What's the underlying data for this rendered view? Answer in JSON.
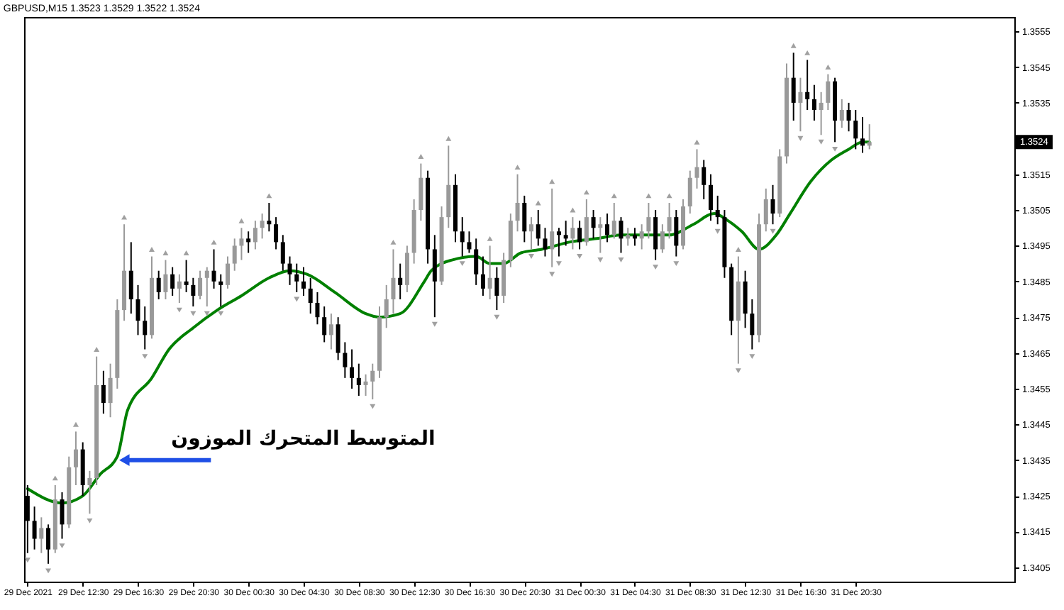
{
  "chart_data": {
    "type": "candlestick",
    "title": "GBPUSD,M15 1.3523 1.3529 1.3522 1.3524",
    "x": [
      "2021-12-29T08:30",
      "2021-12-29T09:00",
      "2021-12-29T09:30",
      "2021-12-29T10:00",
      "2021-12-29T10:30",
      "2021-12-29T11:00",
      "2021-12-29T11:30",
      "2021-12-29T12:00",
      "2021-12-29T12:30",
      "2021-12-29T13:00",
      "2021-12-29T13:30",
      "2021-12-29T14:00",
      "2021-12-29T14:30",
      "2021-12-29T15:00",
      "2021-12-29T15:30",
      "2021-12-29T16:00",
      "2021-12-29T16:30",
      "2021-12-29T17:00",
      "2021-12-29T17:30",
      "2021-12-29T18:00",
      "2021-12-29T18:30",
      "2021-12-29T19:00",
      "2021-12-29T19:30",
      "2021-12-29T20:00",
      "2021-12-29T20:30",
      "2021-12-29T21:00",
      "2021-12-29T21:30",
      "2021-12-29T22:00",
      "2021-12-29T22:30",
      "2021-12-29T23:00",
      "2021-12-29T23:30",
      "2021-12-30T00:00",
      "2021-12-30T00:30",
      "2021-12-30T01:00",
      "2021-12-30T01:30",
      "2021-12-30T02:00",
      "2021-12-30T02:30",
      "2021-12-30T03:00",
      "2021-12-30T03:30",
      "2021-12-30T04:00",
      "2021-12-30T04:30",
      "2021-12-30T05:00",
      "2021-12-30T05:30",
      "2021-12-30T06:00",
      "2021-12-30T06:30",
      "2021-12-30T07:00",
      "2021-12-30T07:30",
      "2021-12-30T08:00",
      "2021-12-30T08:30",
      "2021-12-30T09:00",
      "2021-12-30T09:30",
      "2021-12-30T10:00",
      "2021-12-30T10:30",
      "2021-12-30T11:00",
      "2021-12-30T11:30",
      "2021-12-30T12:00",
      "2021-12-30T12:30",
      "2021-12-30T13:00",
      "2021-12-30T13:30",
      "2021-12-30T14:00",
      "2021-12-30T14:30",
      "2021-12-30T15:00",
      "2021-12-30T15:30",
      "2021-12-30T16:00",
      "2021-12-30T16:30",
      "2021-12-30T17:00",
      "2021-12-30T17:30",
      "2021-12-30T18:00",
      "2021-12-30T18:30",
      "2021-12-30T19:00",
      "2021-12-30T19:30",
      "2021-12-30T20:00",
      "2021-12-30T20:30",
      "2021-12-30T21:00",
      "2021-12-30T21:30",
      "2021-12-30T22:00",
      "2021-12-30T22:30",
      "2021-12-30T23:00",
      "2021-12-30T23:30",
      "2021-12-31T00:00",
      "2021-12-31T00:30",
      "2021-12-31T01:00",
      "2021-12-31T01:30",
      "2021-12-31T02:00",
      "2021-12-31T02:30",
      "2021-12-31T03:00",
      "2021-12-31T03:30",
      "2021-12-31T04:00",
      "2021-12-31T04:30",
      "2021-12-31T05:00",
      "2021-12-31T05:30",
      "2021-12-31T06:00",
      "2021-12-31T06:30",
      "2021-12-31T07:00",
      "2021-12-31T07:30",
      "2021-12-31T08:00",
      "2021-12-31T08:30",
      "2021-12-31T09:00",
      "2021-12-31T09:30",
      "2021-12-31T10:00",
      "2021-12-31T10:30",
      "2021-12-31T11:00",
      "2021-12-31T11:30",
      "2021-12-31T12:00",
      "2021-12-31T12:30",
      "2021-12-31T13:00",
      "2021-12-31T13:30",
      "2021-12-31T14:00",
      "2021-12-31T14:30",
      "2021-12-31T15:00",
      "2021-12-31T15:30",
      "2021-12-31T16:00",
      "2021-12-31T16:30",
      "2021-12-31T17:00",
      "2021-12-31T17:30",
      "2021-12-31T18:00",
      "2021-12-31T18:30",
      "2021-12-31T19:00",
      "2021-12-31T19:30",
      "2021-12-31T20:00",
      "2021-12-31T20:30",
      "2021-12-31T21:00",
      "2021-12-31T21:30"
    ],
    "ohlc": [
      [
        1.3425,
        1.3428,
        1.3409,
        1.3418
      ],
      [
        1.3418,
        1.3422,
        1.341,
        1.3413
      ],
      [
        1.3413,
        1.3419,
        1.3409,
        1.3416
      ],
      [
        1.3416,
        1.3417,
        1.3406,
        1.341
      ],
      [
        1.341,
        1.3428,
        1.3409,
        1.3424
      ],
      [
        1.3424,
        1.3426,
        1.3413,
        1.3417
      ],
      [
        1.3417,
        1.3436,
        1.3416,
        1.3433
      ],
      [
        1.3433,
        1.3443,
        1.3428,
        1.3438
      ],
      [
        1.3438,
        1.344,
        1.3425,
        1.3428
      ],
      [
        1.3428,
        1.3432,
        1.342,
        1.343
      ],
      [
        1.343,
        1.3464,
        1.3428,
        1.3456
      ],
      [
        1.3456,
        1.346,
        1.3448,
        1.3451
      ],
      [
        1.3451,
        1.3462,
        1.3447,
        1.3458
      ],
      [
        1.3458,
        1.348,
        1.3455,
        1.3477
      ],
      [
        1.3477,
        1.3501,
        1.3474,
        1.3488
      ],
      [
        1.3488,
        1.3496,
        1.3476,
        1.348
      ],
      [
        1.348,
        1.3484,
        1.347,
        1.3474
      ],
      [
        1.3474,
        1.3478,
        1.3466,
        1.347
      ],
      [
        1.347,
        1.3492,
        1.3469,
        1.3486
      ],
      [
        1.3486,
        1.3488,
        1.348,
        1.3482
      ],
      [
        1.3482,
        1.3491,
        1.348,
        1.3487
      ],
      [
        1.3487,
        1.3489,
        1.3481,
        1.3483
      ],
      [
        1.3483,
        1.3487,
        1.3479,
        1.3485
      ],
      [
        1.3485,
        1.3491,
        1.3482,
        1.3484
      ],
      [
        1.3484,
        1.3486,
        1.3478,
        1.3481
      ],
      [
        1.3481,
        1.3488,
        1.348,
        1.3486
      ],
      [
        1.3486,
        1.3489,
        1.3478,
        1.3488
      ],
      [
        1.3488,
        1.3494,
        1.3483,
        1.3485
      ],
      [
        1.3485,
        1.3487,
        1.3478,
        1.3484
      ],
      [
        1.3484,
        1.3492,
        1.3483,
        1.349
      ],
      [
        1.349,
        1.3497,
        1.3488,
        1.3495
      ],
      [
        1.3495,
        1.35,
        1.3491,
        1.3497
      ],
      [
        1.3497,
        1.3499,
        1.3493,
        1.3496
      ],
      [
        1.3496,
        1.3502,
        1.3494,
        1.35
      ],
      [
        1.35,
        1.3504,
        1.3497,
        1.3502
      ],
      [
        1.3502,
        1.3507,
        1.3499,
        1.3501
      ],
      [
        1.3501,
        1.3503,
        1.3494,
        1.3496
      ],
      [
        1.3496,
        1.3498,
        1.3488,
        1.349
      ],
      [
        1.349,
        1.3492,
        1.3484,
        1.3487
      ],
      [
        1.3487,
        1.349,
        1.3482,
        1.3485
      ],
      [
        1.3485,
        1.3489,
        1.3481,
        1.3483
      ],
      [
        1.3483,
        1.3486,
        1.3476,
        1.3479
      ],
      [
        1.3479,
        1.3482,
        1.3473,
        1.3475
      ],
      [
        1.3475,
        1.3478,
        1.3468,
        1.347
      ],
      [
        1.347,
        1.3476,
        1.3466,
        1.3473
      ],
      [
        1.3473,
        1.3475,
        1.3463,
        1.3465
      ],
      [
        1.3465,
        1.3468,
        1.3458,
        1.3461
      ],
      [
        1.3461,
        1.3466,
        1.3455,
        1.3458
      ],
      [
        1.3458,
        1.3462,
        1.3453,
        1.3456
      ],
      [
        1.3456,
        1.3459,
        1.3453,
        1.3457
      ],
      [
        1.3457,
        1.3462,
        1.3452,
        1.346
      ],
      [
        1.346,
        1.3478,
        1.3458,
        1.3475
      ],
      [
        1.3475,
        1.3484,
        1.3472,
        1.348
      ],
      [
        1.348,
        1.3494,
        1.3476,
        1.3486
      ],
      [
        1.3486,
        1.349,
        1.348,
        1.3484
      ],
      [
        1.3484,
        1.3495,
        1.3482,
        1.3493
      ],
      [
        1.3493,
        1.3508,
        1.349,
        1.3505
      ],
      [
        1.3505,
        1.3518,
        1.3502,
        1.3514
      ],
      [
        1.3514,
        1.3516,
        1.349,
        1.3494
      ],
      [
        1.3494,
        1.3498,
        1.3475,
        1.3485
      ],
      [
        1.3485,
        1.3506,
        1.3484,
        1.3503
      ],
      [
        1.3503,
        1.3523,
        1.35,
        1.3512
      ],
      [
        1.3512,
        1.3515,
        1.3496,
        1.3499
      ],
      [
        1.3499,
        1.3503,
        1.3492,
        1.3496
      ],
      [
        1.3496,
        1.3499,
        1.3493,
        1.3494
      ],
      [
        1.3494,
        1.3497,
        1.3484,
        1.3487
      ],
      [
        1.3487,
        1.3492,
        1.3481,
        1.3483
      ],
      [
        1.3483,
        1.3495,
        1.348,
        1.3486
      ],
      [
        1.3486,
        1.3489,
        1.3477,
        1.3481
      ],
      [
        1.3481,
        1.3493,
        1.3479,
        1.3491
      ],
      [
        1.3491,
        1.3504,
        1.3489,
        1.3502
      ],
      [
        1.3502,
        1.3515,
        1.3499,
        1.3507
      ],
      [
        1.3507,
        1.3509,
        1.3496,
        1.3499
      ],
      [
        1.3499,
        1.3503,
        1.3494,
        1.3501
      ],
      [
        1.3501,
        1.3505,
        1.3495,
        1.3497
      ],
      [
        1.3497,
        1.35,
        1.3492,
        1.3494
      ],
      [
        1.3494,
        1.3511,
        1.3489,
        1.3499
      ],
      [
        1.3499,
        1.35,
        1.3492,
        1.3498
      ],
      [
        1.3498,
        1.3502,
        1.3495,
        1.3497
      ],
      [
        1.3497,
        1.3503,
        1.3494,
        1.35
      ],
      [
        1.35,
        1.3502,
        1.3494,
        1.3496
      ],
      [
        1.3496,
        1.3508,
        1.3495,
        1.3503
      ],
      [
        1.3503,
        1.3505,
        1.3497,
        1.35
      ],
      [
        1.35,
        1.3503,
        1.3493,
        1.3501
      ],
      [
        1.3501,
        1.3504,
        1.3496,
        1.3498
      ],
      [
        1.3498,
        1.3507,
        1.3497,
        1.3502
      ],
      [
        1.3502,
        1.3503,
        1.3493,
        1.3497
      ],
      [
        1.3497,
        1.35,
        1.3495,
        1.3498
      ],
      [
        1.3498,
        1.35,
        1.3495,
        1.3497
      ],
      [
        1.3497,
        1.3501,
        1.3494,
        1.3499
      ],
      [
        1.3499,
        1.3507,
        1.3497,
        1.3503
      ],
      [
        1.3503,
        1.3505,
        1.3491,
        1.3494
      ],
      [
        1.3494,
        1.3501,
        1.3493,
        1.3499
      ],
      [
        1.3499,
        1.3507,
        1.3497,
        1.3503
      ],
      [
        1.3503,
        1.3505,
        1.3492,
        1.3495
      ],
      [
        1.3495,
        1.3508,
        1.3494,
        1.3506
      ],
      [
        1.3506,
        1.3516,
        1.3504,
        1.3514
      ],
      [
        1.3514,
        1.3522,
        1.3511,
        1.3517
      ],
      [
        1.3517,
        1.3519,
        1.3508,
        1.3512
      ],
      [
        1.3512,
        1.3515,
        1.3502,
        1.3505
      ],
      [
        1.3505,
        1.3509,
        1.3501,
        1.3503
      ],
      [
        1.3503,
        1.3505,
        1.3486,
        1.3489
      ],
      [
        1.3489,
        1.349,
        1.347,
        1.3474
      ],
      [
        1.3474,
        1.3492,
        1.3462,
        1.3485
      ],
      [
        1.3485,
        1.3488,
        1.3472,
        1.3476
      ],
      [
        1.3476,
        1.348,
        1.3466,
        1.347
      ],
      [
        1.347,
        1.3504,
        1.3468,
        1.3501
      ],
      [
        1.3501,
        1.3511,
        1.3499,
        1.3508
      ],
      [
        1.3508,
        1.3512,
        1.3501,
        1.3504
      ],
      [
        1.3504,
        1.3522,
        1.3503,
        1.352
      ],
      [
        1.352,
        1.3546,
        1.3518,
        1.3542
      ],
      [
        1.3542,
        1.3549,
        1.353,
        1.3535
      ],
      [
        1.3535,
        1.3542,
        1.3527,
        1.3538
      ],
      [
        1.3538,
        1.3547,
        1.3533,
        1.3536
      ],
      [
        1.3536,
        1.354,
        1.353,
        1.3533
      ],
      [
        1.3533,
        1.3538,
        1.3526,
        1.3535
      ],
      [
        1.3535,
        1.3543,
        1.3533,
        1.3541
      ],
      [
        1.3541,
        1.3542,
        1.3524,
        1.353
      ],
      [
        1.353,
        1.3536,
        1.3528,
        1.3533
      ],
      [
        1.3533,
        1.3535,
        1.3527,
        1.353
      ],
      [
        1.353,
        1.3533,
        1.3522,
        1.3525
      ],
      [
        1.3525,
        1.3531,
        1.3521,
        1.3523
      ],
      [
        1.3523,
        1.3529,
        1.3522,
        1.3524
      ]
    ],
    "colors": [
      "#000000",
      "#000000",
      "#999999",
      "#000000",
      "#999999",
      "#000000",
      "#999999",
      "#999999",
      "#000000",
      "#999999",
      "#999999",
      "#000000",
      "#999999",
      "#999999",
      "#999999",
      "#000000",
      "#000000",
      "#000000",
      "#999999",
      "#000000",
      "#999999",
      "#000000",
      "#999999",
      "#000000",
      "#000000",
      "#999999",
      "#999999",
      "#000000",
      "#000000",
      "#999999",
      "#999999",
      "#999999",
      "#000000",
      "#999999",
      "#999999",
      "#000000",
      "#000000",
      "#000000",
      "#000000",
      "#000000",
      "#000000",
      "#000000",
      "#000000",
      "#000000",
      "#999999",
      "#000000",
      "#000000",
      "#000000",
      "#000000",
      "#999999",
      "#999999",
      "#999999",
      "#999999",
      "#999999",
      "#000000",
      "#999999",
      "#999999",
      "#999999",
      "#000000",
      "#000000",
      "#999999",
      "#999999",
      "#000000",
      "#000000",
      "#000000",
      "#000000",
      "#000000",
      "#999999",
      "#000000",
      "#999999",
      "#999999",
      "#999999",
      "#000000",
      "#999999",
      "#000000",
      "#000000",
      "#999999",
      "#000000",
      "#000000",
      "#999999",
      "#000000",
      "#999999",
      "#000000",
      "#999999",
      "#000000",
      "#999999",
      "#000000",
      "#999999",
      "#000000",
      "#999999",
      "#999999",
      "#000000",
      "#999999",
      "#999999",
      "#000000",
      "#999999",
      "#999999",
      "#999999",
      "#000000",
      "#000000",
      "#000000",
      "#000000",
      "#000000",
      "#999999",
      "#000000",
      "#000000",
      "#999999",
      "#999999",
      "#000000",
      "#999999",
      "#999999",
      "#000000",
      "#999999",
      "#000000",
      "#000000",
      "#999999",
      "#999999",
      "#000000",
      "#999999",
      "#000000",
      "#000000",
      "#000000",
      "#999999"
    ],
    "series": [
      {
        "type": "line",
        "color": "#008000",
        "marker": "none",
        "line_style": "solid",
        "x": [
          "2021-12-29T08:30",
          "2021-12-29T11:00",
          "2021-12-29T12:30",
          "2021-12-29T13:45",
          "2021-12-29T15:00",
          "2021-12-29T15:45",
          "2021-12-29T17:30",
          "2021-12-29T18:45",
          "2021-12-29T20:30",
          "2021-12-29T22:15",
          "2021-12-30T00:00",
          "2021-12-30T02:00",
          "2021-12-30T03:30",
          "2021-12-30T04:45",
          "2021-12-30T06:45",
          "2021-12-30T09:00",
          "2021-12-30T10:00",
          "2021-12-30T11:30",
          "2021-12-30T13:15",
          "2021-12-30T13:45",
          "2021-12-30T15:15",
          "2021-12-30T17:00",
          "2021-12-30T18:00",
          "2021-12-30T19:00",
          "2021-12-30T20:15",
          "2021-12-30T21:45",
          "2021-12-30T23:45",
          "2021-12-31T01:45",
          "2021-12-31T03:30",
          "2021-12-31T05:15",
          "2021-12-31T07:00",
          "2021-12-31T08:45",
          "2021-12-31T10:15",
          "2021-12-31T11:15",
          "2021-12-31T12:15",
          "2021-12-31T13:30",
          "2021-12-31T14:45",
          "2021-12-31T15:45",
          "2021-12-31T17:15",
          "2021-12-31T18:45",
          "2021-12-31T20:00",
          "2021-12-31T21:00",
          "2021-12-31T21:30"
        ],
        "values": [
          1.3427,
          1.3423,
          1.3425,
          1.3431,
          1.3436,
          1.3449,
          1.3458,
          1.3466,
          1.3472,
          1.3477,
          1.3481,
          1.3486,
          1.3488,
          1.3487,
          1.3482,
          1.3476,
          1.3475,
          1.3476,
          1.3485,
          1.3488,
          1.3491,
          1.3492,
          1.349,
          1.349,
          1.3493,
          1.3494,
          1.3496,
          1.3497,
          1.3498,
          1.3498,
          1.3498,
          1.3501,
          1.3504,
          1.3502,
          1.3499,
          1.3494,
          1.3498,
          1.3504,
          1.3513,
          1.3519,
          1.3522,
          1.3524,
          1.3524
        ]
      },
      {
        "type": "scatter",
        "color": "#a0a0a0",
        "marker": "triangle",
        "x": [
          "2021-12-29T10:30",
          "2021-12-29T12:00",
          "2021-12-29T13:30",
          "2021-12-29T15:30",
          "2021-12-29T17:30",
          "2021-12-29T18:30",
          "2021-12-29T20:00",
          "2021-12-29T22:00",
          "2021-12-30T00:00",
          "2021-12-30T02:00",
          "2021-12-30T11:00",
          "2021-12-30T13:00",
          "2021-12-30T15:00",
          "2021-12-30T18:00",
          "2021-12-30T20:00",
          "2021-12-30T21:30",
          "2021-12-30T22:30",
          "2021-12-31T00:00",
          "2021-12-31T01:00",
          "2021-12-31T03:00",
          "2021-12-31T05:30",
          "2021-12-31T07:00",
          "2021-12-31T09:00",
          "2021-12-31T12:00",
          "2021-12-31T16:00",
          "2021-12-31T17:00",
          "2021-12-31T18:30"
        ],
        "values": [
          1.343,
          1.3445,
          1.3466,
          1.3503,
          1.3494,
          1.3493,
          1.3493,
          1.3496,
          1.3502,
          1.3509,
          1.3496,
          1.352,
          1.3525,
          1.3497,
          1.3517,
          1.3507,
          1.3513,
          1.3505,
          1.351,
          1.3509,
          1.3509,
          1.3509,
          1.3524,
          1.3494,
          1.3551,
          1.3549,
          1.3545
        ]
      },
      {
        "type": "scatter",
        "color": "#a0a0a0",
        "marker": "triangle",
        "x": [
          "2021-12-29T08:30",
          "2021-12-29T10:00",
          "2021-12-29T11:00",
          "2021-12-29T13:00",
          "2021-12-29T17:00",
          "2021-12-29T19:30",
          "2021-12-29T20:30",
          "2021-12-29T21:30",
          "2021-12-29T22:30",
          "2021-12-30T04:00",
          "2021-12-30T09:30",
          "2021-12-30T14:00",
          "2021-12-30T16:00",
          "2021-12-30T18:30",
          "2021-12-30T21:00",
          "2021-12-30T22:30",
          "2021-12-30T23:00",
          "2021-12-31T00:30",
          "2021-12-31T02:00",
          "2021-12-31T03:30",
          "2021-12-31T06:00",
          "2021-12-31T07:30",
          "2021-12-31T10:30",
          "2021-12-31T12:00",
          "2021-12-31T13:00",
          "2021-12-31T14:30",
          "2021-12-31T16:30",
          "2021-12-31T18:00",
          "2021-12-31T19:00"
        ],
        "values": [
          1.3407,
          1.3404,
          1.3411,
          1.3418,
          1.3464,
          1.3477,
          1.3476,
          1.3476,
          1.3476,
          1.348,
          1.345,
          1.3473,
          1.349,
          1.3475,
          1.3492,
          1.3487,
          1.349,
          1.3492,
          1.3491,
          1.3491,
          1.3489,
          1.349,
          1.3499,
          1.346,
          1.3464,
          1.3499,
          1.3525,
          1.3524,
          1.3522
        ]
      }
    ],
    "xlim": [
      "2021-12-29T08:15",
      "2022-01-01T08:00"
    ],
    "ylim": [
      1.3401,
      1.3559
    ],
    "xticks": [
      {
        "value": "2021-12-29T08:30",
        "label": "29 Dec 2021"
      },
      {
        "value": "2021-12-29T12:30",
        "label": "29 Dec 12:30"
      },
      {
        "value": "2021-12-29T16:30",
        "label": "29 Dec 16:30"
      },
      {
        "value": "2021-12-29T20:30",
        "label": "29 Dec 20:30"
      },
      {
        "value": "2021-12-30T00:30",
        "label": "30 Dec 00:30"
      },
      {
        "value": "2021-12-30T04:30",
        "label": "30 Dec 04:30"
      },
      {
        "value": "2021-12-30T08:30",
        "label": "30 Dec 08:30"
      },
      {
        "value": "2021-12-30T12:30",
        "label": "30 Dec 12:30"
      },
      {
        "value": "2021-12-30T16:30",
        "label": "30 Dec 16:30"
      },
      {
        "value": "2021-12-30T20:30",
        "label": "30 Dec 20:30"
      },
      {
        "value": "2021-12-31T00:30",
        "label": "31 Dec 00:30"
      },
      {
        "value": "2021-12-31T04:30",
        "label": "31 Dec 04:30"
      },
      {
        "value": "2021-12-31T08:30",
        "label": "31 Dec 08:30"
      },
      {
        "value": "2021-12-31T12:30",
        "label": "31 Dec 12:30"
      },
      {
        "value": "2021-12-31T16:30",
        "label": "31 Dec 16:30"
      },
      {
        "value": "2021-12-31T20:30",
        "label": "31 Dec 20:30"
      }
    ],
    "yticks": [
      1.3405,
      1.3415,
      1.3425,
      1.3435,
      1.3445,
      1.3455,
      1.3465,
      1.3475,
      1.3485,
      1.3495,
      1.3505,
      1.3515,
      {
        "value": 1.3525,
        "label": null
      },
      1.3535,
      1.3545,
      1.3555
    ],
    "annotations": [
      {
        "text": "المتوسط المتحرك الموزون",
        "x": "2021-12-29T15:00",
        "y": 1.3435
      },
      "1.3524"
    ]
  }
}
